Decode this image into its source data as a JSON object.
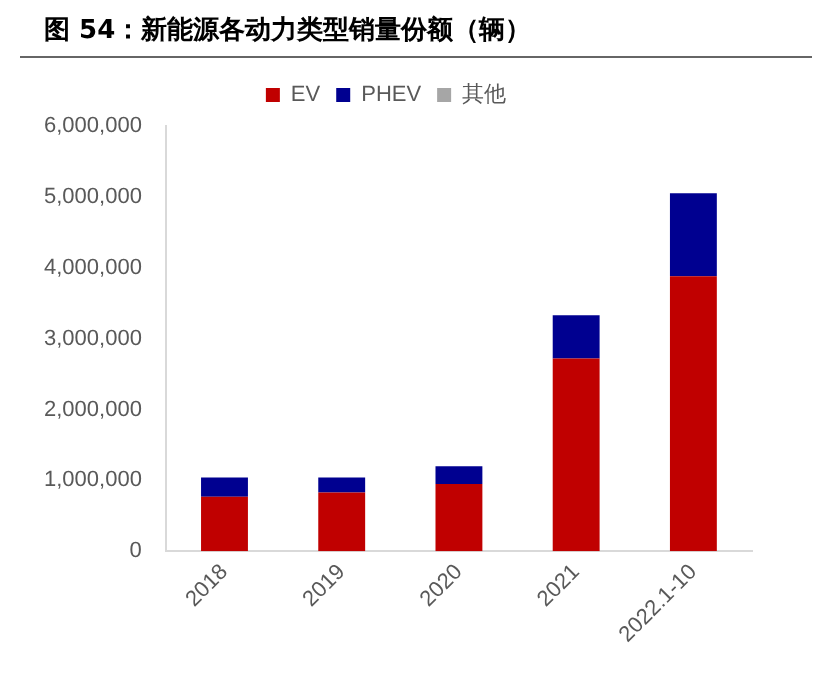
{
  "chart_data": {
    "type": "bar",
    "title": "图 54：新能源各动力类型销量份额（辆）",
    "stacked": true,
    "legend": "top",
    "grid": false,
    "categories": [
      "2018",
      "2019",
      "2020",
      "2021",
      "2022.1-10"
    ],
    "series": [
      {
        "name": "EV",
        "color": "#c00000",
        "values": [
          770000,
          830000,
          950000,
          2720000,
          3880000
        ]
      },
      {
        "name": "PHEV",
        "color": "#000090",
        "values": [
          270000,
          210000,
          250000,
          610000,
          1170000
        ]
      },
      {
        "name": "其他",
        "color": "#a6a6a6",
        "values": [
          null,
          null,
          null,
          null,
          null
        ]
      }
    ],
    "ylim": [
      0,
      6000000
    ],
    "yticks": [
      {
        "value": 0,
        "label": "0"
      },
      {
        "value": 1000000,
        "label": "1,000,000"
      },
      {
        "value": 2000000,
        "label": "2,000,000"
      },
      {
        "value": 3000000,
        "label": "3,000,000"
      },
      {
        "value": 4000000,
        "label": "4,000,000"
      },
      {
        "value": 5000000,
        "label": "5,000,000"
      },
      {
        "value": 6000000,
        "label": "6,000,000"
      }
    ]
  }
}
